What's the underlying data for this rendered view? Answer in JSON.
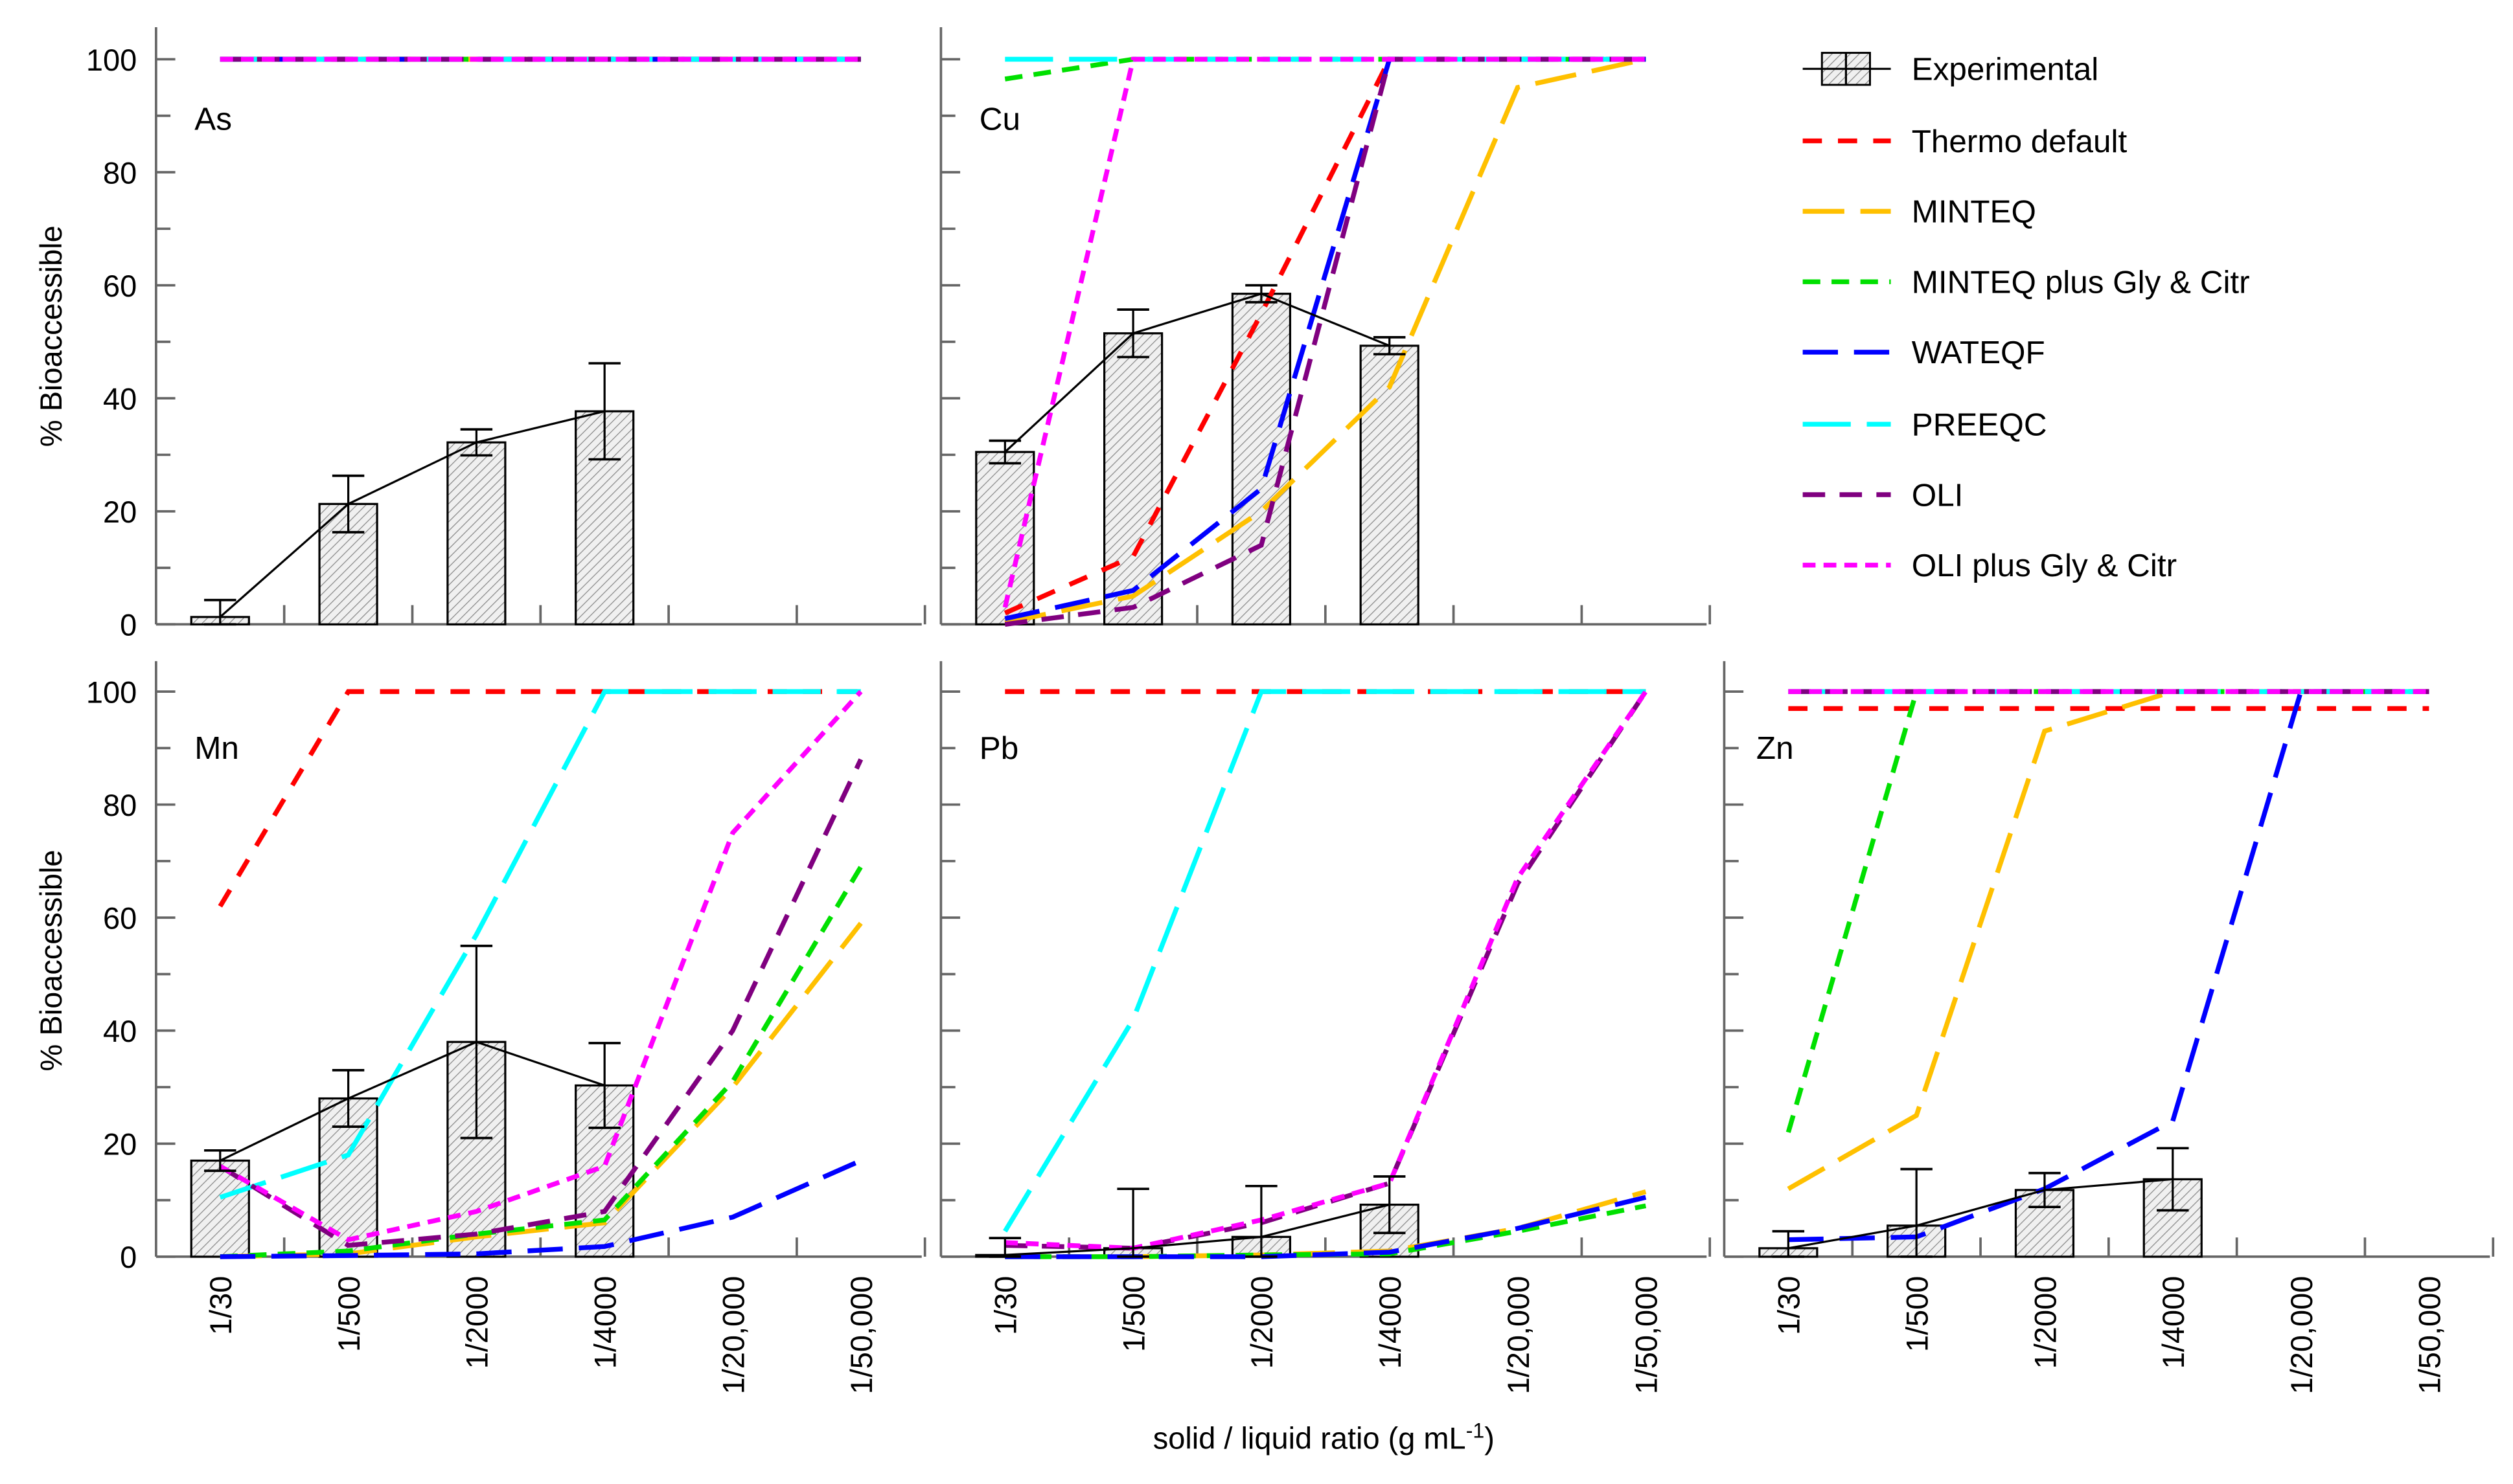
{
  "chart_data": {
    "type": "bar+line",
    "ylabel": "% Bioaccessible",
    "xlabel": "solid / liquid ratio (g mL",
    "xlabel_sup": "-1",
    "xlabel_close": ")",
    "ylim": [
      0,
      100
    ],
    "yticks": [
      0,
      20,
      40,
      60,
      80,
      100
    ],
    "categories": [
      "1/30",
      "1/500",
      "1/2000",
      "1/4000",
      "1/20,000",
      "1/50,000"
    ],
    "legend": {
      "placement": "right",
      "experimental_label": "Experimental"
    },
    "series_styles": [
      {
        "key": "thermo",
        "name": "Thermo default",
        "color": "#FF0000",
        "dash": "12,10"
      },
      {
        "key": "minteq",
        "name": "MINTEQ",
        "color": "#FFC000",
        "dash": "26,10"
      },
      {
        "key": "minteq_gc",
        "name": "MINTEQ plus Gly & Citr",
        "color": "#00E000",
        "dash": "11,7"
      },
      {
        "key": "wateqf",
        "name": "WATEQF",
        "color": "#0000FF",
        "dash": "22,10"
      },
      {
        "key": "preeqc",
        "name": "PREEQC",
        "color": "#00FFFF",
        "dash": "30,10"
      },
      {
        "key": "oli",
        "name": "OLI",
        "color": "#800080",
        "dash": "14,9"
      },
      {
        "key": "oli_gc",
        "name": "OLI plus Gly & Citr",
        "color": "#FF00FF",
        "dash": "8,5"
      }
    ],
    "panels": [
      {
        "element": "As",
        "experimental": [
          1.3,
          21.3,
          32.2,
          37.7
        ],
        "error": [
          3.0,
          5.0,
          2.3,
          8.5
        ],
        "series": {
          "thermo": [
            100,
            100,
            100,
            100,
            100,
            100
          ],
          "minteq": [
            100,
            100,
            100,
            100,
            100,
            100
          ],
          "minteq_gc": [
            100,
            100,
            100,
            100,
            100,
            100
          ],
          "wateqf": [
            100,
            100,
            100,
            100,
            100,
            100
          ],
          "preeqc": [
            100,
            100,
            100,
            100,
            100,
            100
          ],
          "oli": [
            100,
            100,
            100,
            100,
            100,
            100
          ],
          "oli_gc": [
            100,
            100,
            100,
            100,
            100,
            100
          ]
        }
      },
      {
        "element": "Cu",
        "experimental": [
          30.5,
          51.5,
          58.5,
          49.3
        ],
        "error": [
          2.0,
          4.2,
          1.5,
          1.5
        ],
        "series": {
          "thermo": [
            2,
            12,
            55,
            100,
            100,
            100
          ],
          "minteq": [
            0.3,
            5,
            20,
            42,
            95,
            100
          ],
          "minteq_gc": [
            96.5,
            100,
            100,
            100,
            100,
            100
          ],
          "wateqf": [
            1,
            6,
            24,
            100,
            100,
            100
          ],
          "preeqc": [
            100,
            100,
            100,
            100,
            100,
            100
          ],
          "oli": [
            0,
            3,
            14,
            100,
            100,
            100
          ],
          "oli_gc": [
            3,
            100,
            100,
            100,
            100,
            100
          ]
        }
      },
      {
        "element": "Mn",
        "experimental": [
          17,
          28,
          38,
          30.3
        ],
        "error": [
          1.8,
          5,
          17,
          7.5
        ],
        "series": {
          "thermo": [
            62,
            100,
            100,
            100,
            100,
            100
          ],
          "minteq": [
            0,
            0.5,
            3.5,
            6,
            30,
            59
          ],
          "minteq_gc": [
            0,
            1,
            4,
            6.5,
            31,
            69
          ],
          "wateqf": [
            0,
            0.2,
            0.5,
            1.8,
            7,
            17
          ],
          "preeqc": [
            10.5,
            18,
            57,
            100,
            100,
            100
          ],
          "oli": [
            16,
            2,
            4,
            8,
            40,
            88
          ],
          "oli_gc": [
            16,
            3,
            8,
            16,
            75,
            100
          ]
        }
      },
      {
        "element": "Pb",
        "experimental": [
          0.3,
          1.5,
          3.5,
          9.2
        ],
        "error": [
          3,
          10.5,
          9,
          5
        ],
        "series": {
          "thermo": [
            100,
            100,
            100,
            100,
            100,
            100
          ],
          "minteq": [
            0,
            0,
            0.3,
            1,
            5,
            11.5
          ],
          "minteq_gc": [
            0,
            0,
            0.3,
            0.5,
            4.5,
            9
          ],
          "wateqf": [
            0,
            0,
            0,
            0.8,
            5,
            10.5
          ],
          "preeqc": [
            4.5,
            42,
            100,
            100,
            100,
            100
          ],
          "oli": [
            2,
            1.5,
            6,
            13,
            66,
            100
          ],
          "oli_gc": [
            2.5,
            1.5,
            6.5,
            13,
            67,
            100
          ]
        }
      },
      {
        "element": "Zn",
        "experimental": [
          1.5,
          5.5,
          11.8,
          13.7
        ],
        "error": [
          3,
          10,
          3,
          5.5
        ],
        "series": {
          "thermo": [
            97,
            97,
            97,
            97,
            97,
            97
          ],
          "minteq": [
            12,
            25,
            93,
            100,
            100,
            100
          ],
          "minteq_gc": [
            22,
            100,
            100,
            100,
            100,
            100
          ],
          "wateqf": [
            3,
            3.5,
            12,
            24,
            100,
            100
          ],
          "preeqc": [
            100,
            100,
            100,
            100,
            100,
            100
          ],
          "oli": [
            100,
            100,
            100,
            100,
            100,
            100
          ],
          "oli_gc": [
            100,
            100,
            100,
            100,
            100,
            100
          ]
        }
      }
    ]
  }
}
